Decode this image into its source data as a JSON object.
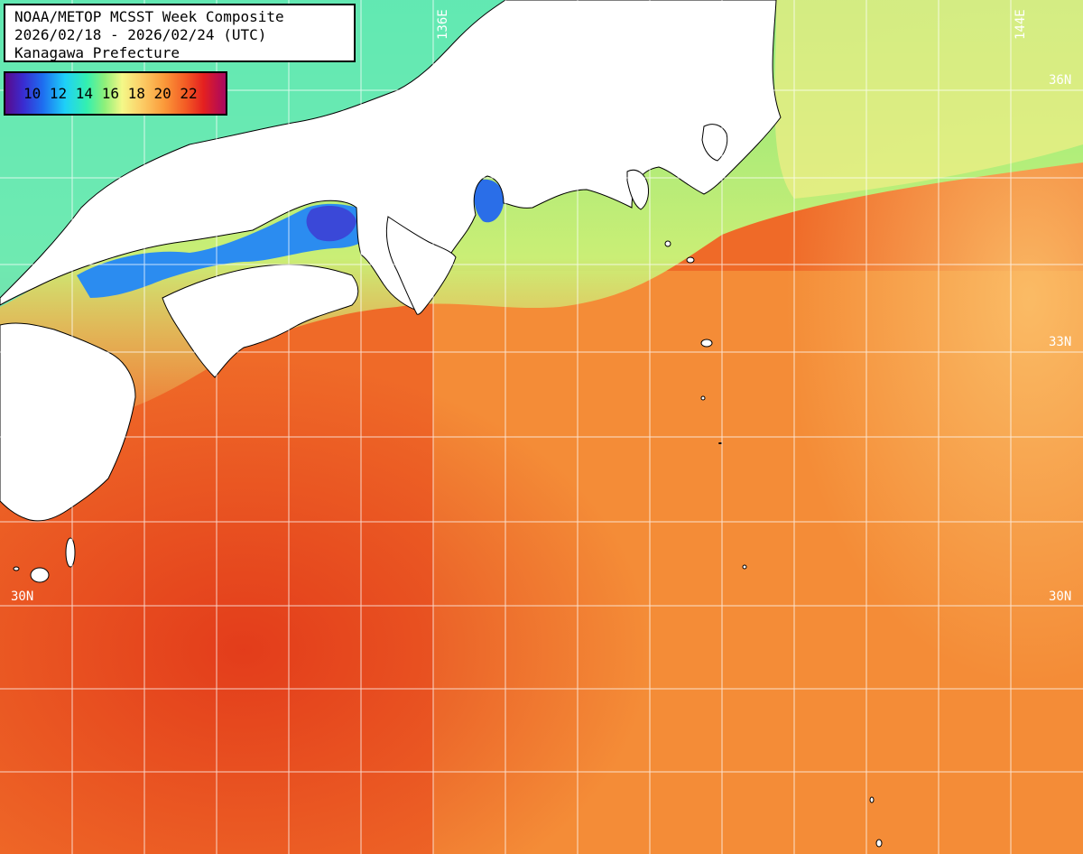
{
  "header": {
    "line1": "NOAA/METOP MCSST Week Composite",
    "line2": "2026/02/18 - 2026/02/24 (UTC)",
    "line3": "Kanagawa Prefecture"
  },
  "legend": {
    "ticks": "10 12 14 16 18 20 22",
    "unit_range": [
      9,
      23
    ],
    "colors": [
      "#5a0a8a",
      "#3a2bd0",
      "#1e6ef0",
      "#1ed0f8",
      "#34f0b0",
      "#8ef07a",
      "#f4f888",
      "#fbd26a",
      "#fb9a3a",
      "#f35a24",
      "#e42020",
      "#a80a60"
    ]
  },
  "grid_labels": {
    "lon_136": "136E",
    "lon_144": "144E",
    "lat_36": "36N",
    "lat_33": "33N",
    "lat_30_left": "30N",
    "lat_30_right": "30N"
  },
  "colors": {
    "land": "#ffffff",
    "coastline": "#000000",
    "gridline": "#ffffff",
    "warm_ocean": "#e8461e",
    "mid_ocean": "#f79a3a",
    "cool_ocean": "#8ef07a",
    "cold_bay": "#1e6ef0"
  }
}
